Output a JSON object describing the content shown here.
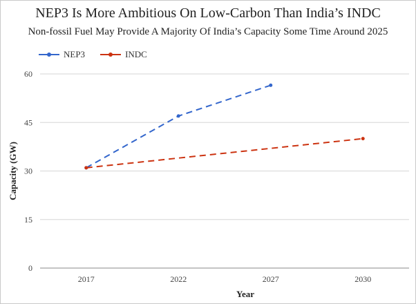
{
  "chart_data": {
    "type": "line",
    "title": "NEP3 Is More Ambitious On Low-Carbon Than India’s INDC",
    "subtitle": "Non-fossil  Fuel May Provide A Majority Of India’s Capacity Some Time Around 2025",
    "xlabel": "Year",
    "ylabel": "Capacity (GW)",
    "categories": [
      "2017",
      "2022",
      "2027",
      "2030"
    ],
    "ylim": [
      0,
      60
    ],
    "yticks": [
      0,
      15,
      30,
      45,
      60
    ],
    "grid": true,
    "legend_position": "top-left",
    "series": [
      {
        "name": "NEP3",
        "color": "#3366cc",
        "x": [
          "2017",
          "2022",
          "2027"
        ],
        "values": [
          31,
          47,
          56.5
        ]
      },
      {
        "name": "INDC",
        "color": "#cc3311",
        "x": [
          "2017",
          "2030"
        ],
        "values": [
          31,
          40
        ]
      }
    ]
  }
}
